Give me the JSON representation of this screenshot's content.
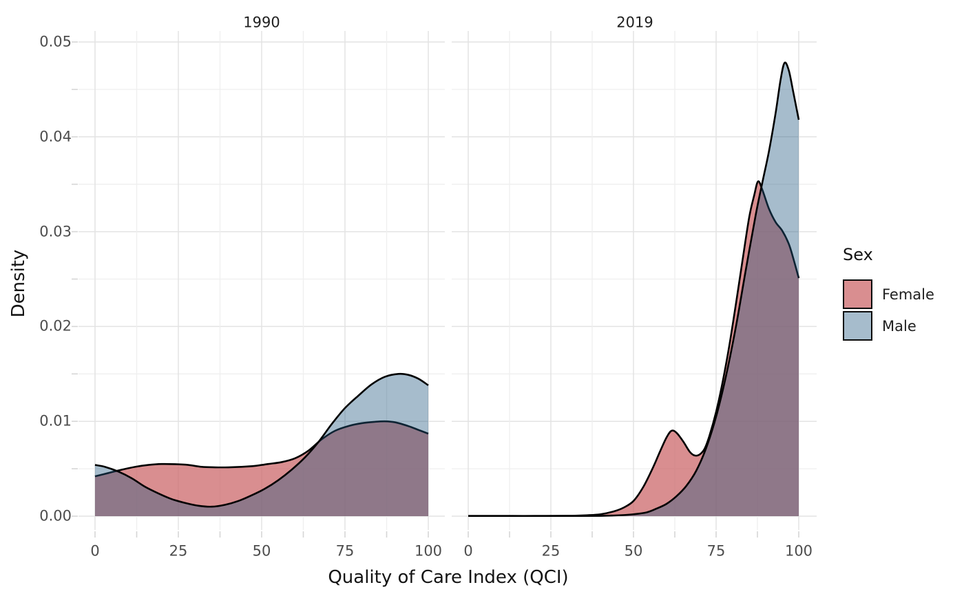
{
  "axes": {
    "x_title": "Quality of Care Index (QCI)",
    "y_title": "Density",
    "x_tick_labels": [
      "0",
      "25",
      "50",
      "75",
      "100"
    ],
    "y_tick_labels": [
      "0.00",
      "0.01",
      "0.02",
      "0.03",
      "0.04",
      "0.05"
    ]
  },
  "legend": {
    "title": "Sex",
    "items": [
      {
        "label": "Female",
        "swatch_fill": "#D98E90",
        "swatch_border": "#0b0b0b"
      },
      {
        "label": "Male",
        "swatch_fill": "#A6BCCC",
        "swatch_border": "#0b0b0b"
      }
    ]
  },
  "chart_data": {
    "type": "area",
    "subtype": "overlaid-density",
    "x_range": [
      0,
      100
    ],
    "y_range": [
      0,
      0.05
    ],
    "x_major_ticks": [
      0,
      25,
      50,
      75,
      100
    ],
    "x_minor_ticks": [
      12.5,
      37.5,
      62.5,
      87.5
    ],
    "y_major_ticks": [
      0,
      0.01,
      0.02,
      0.03,
      0.04,
      0.05
    ],
    "y_minor_ticks": [
      0.005,
      0.015,
      0.025,
      0.035,
      0.045
    ],
    "grid": true,
    "legend_position": "right",
    "facets": [
      {
        "label": "1990",
        "series": [
          {
            "name": "Female",
            "points": [
              [
                0,
                0.0042
              ],
              [
                4,
                0.00455
              ],
              [
                8,
                0.0049
              ],
              [
                12,
                0.0052
              ],
              [
                16,
                0.0054
              ],
              [
                20,
                0.0055
              ],
              [
                24,
                0.00548
              ],
              [
                28,
                0.0054
              ],
              [
                32,
                0.0052
              ],
              [
                36,
                0.00515
              ],
              [
                40,
                0.00515
              ],
              [
                44,
                0.0052
              ],
              [
                48,
                0.0053
              ],
              [
                52,
                0.0055
              ],
              [
                56,
                0.0057
              ],
              [
                60,
                0.0061
              ],
              [
                64,
                0.0069
              ],
              [
                68,
                0.0081
              ],
              [
                72,
                0.009
              ],
              [
                76,
                0.0095
              ],
              [
                80,
                0.0098
              ],
              [
                84,
                0.00995
              ],
              [
                87,
                0.01
              ],
              [
                90,
                0.0099
              ],
              [
                94,
                0.0095
              ],
              [
                97,
                0.0091
              ],
              [
                100,
                0.0087
              ]
            ]
          },
          {
            "name": "Male",
            "points": [
              [
                0,
                0.0054
              ],
              [
                3,
                0.0052
              ],
              [
                7,
                0.0047
              ],
              [
                11,
                0.004
              ],
              [
                15,
                0.0031
              ],
              [
                19,
                0.0024
              ],
              [
                23,
                0.0018
              ],
              [
                27,
                0.0014
              ],
              [
                31,
                0.0011
              ],
              [
                35,
                0.001
              ],
              [
                39,
                0.0012
              ],
              [
                43,
                0.0016
              ],
              [
                47,
                0.0022
              ],
              [
                51,
                0.0029
              ],
              [
                55,
                0.0038
              ],
              [
                59,
                0.0049
              ],
              [
                63,
                0.0062
              ],
              [
                67,
                0.0078
              ],
              [
                71,
                0.0097
              ],
              [
                75,
                0.0114
              ],
              [
                79,
                0.0127
              ],
              [
                83,
                0.0139
              ],
              [
                87,
                0.0147
              ],
              [
                91,
                0.015
              ],
              [
                94,
                0.0149
              ],
              [
                97,
                0.0145
              ],
              [
                100,
                0.0138
              ]
            ]
          }
        ]
      },
      {
        "label": "2019",
        "series": [
          {
            "name": "Female",
            "points": [
              [
                0,
                2e-05
              ],
              [
                10,
                2e-05
              ],
              [
                20,
                2e-05
              ],
              [
                30,
                4e-05
              ],
              [
                36,
                0.0001
              ],
              [
                40,
                0.0002
              ],
              [
                44,
                0.0005
              ],
              [
                47,
                0.0009
              ],
              [
                50,
                0.0016
              ],
              [
                53,
                0.0031
              ],
              [
                56,
                0.0052
              ],
              [
                58,
                0.0068
              ],
              [
                60,
                0.0083
              ],
              [
                61.5,
                0.009
              ],
              [
                63,
                0.0088
              ],
              [
                65,
                0.0079
              ],
              [
                67,
                0.0068
              ],
              [
                68.5,
                0.0064
              ],
              [
                70,
                0.0065
              ],
              [
                71.5,
                0.0071
              ],
              [
                73,
                0.0085
              ],
              [
                75,
                0.011
              ],
              [
                77,
                0.0142
              ],
              [
                79,
                0.018
              ],
              [
                81,
                0.0224
              ],
              [
                83,
                0.027
              ],
              [
                85,
                0.0315
              ],
              [
                86.5,
                0.0338
              ],
              [
                87.7,
                0.0353
              ],
              [
                89,
                0.0344
              ],
              [
                91,
                0.0324
              ],
              [
                93,
                0.031
              ],
              [
                95,
                0.0301
              ],
              [
                97,
                0.0287
              ],
              [
                98.5,
                0.027
              ],
              [
                100,
                0.0251
              ]
            ]
          },
          {
            "name": "Male",
            "points": [
              [
                0,
                2e-05
              ],
              [
                10,
                2e-05
              ],
              [
                20,
                2e-05
              ],
              [
                30,
                2e-05
              ],
              [
                40,
                3e-05
              ],
              [
                46,
                0.0001
              ],
              [
                50,
                0.0002
              ],
              [
                54,
                0.0004
              ],
              [
                57,
                0.0008
              ],
              [
                60,
                0.0013
              ],
              [
                63,
                0.0021
              ],
              [
                66,
                0.0032
              ],
              [
                69,
                0.0048
              ],
              [
                72,
                0.0072
              ],
              [
                75,
                0.0105
              ],
              [
                78,
                0.0148
              ],
              [
                81,
                0.02
              ],
              [
                84,
                0.026
              ],
              [
                87,
                0.0318
              ],
              [
                89,
                0.0352
              ],
              [
                91,
                0.0385
              ],
              [
                93,
                0.0425
              ],
              [
                94.5,
                0.046
              ],
              [
                95.7,
                0.0478
              ],
              [
                97,
                0.047
              ],
              [
                98.3,
                0.0448
              ],
              [
                100,
                0.0418
              ]
            ]
          }
        ]
      }
    ],
    "style": {
      "female_fill": "rgba(204,104,107,0.75)",
      "male_fill": "rgba(33,88,128,0.40)",
      "curve_stroke": "#000000",
      "grid_major": "#e3e3e3",
      "grid_minor": "#efefef",
      "tick_mark_color": "#d6d6d6",
      "tick_label_color": "#4d4d4d",
      "title_color": "#141414",
      "background": "#ffffff"
    }
  }
}
